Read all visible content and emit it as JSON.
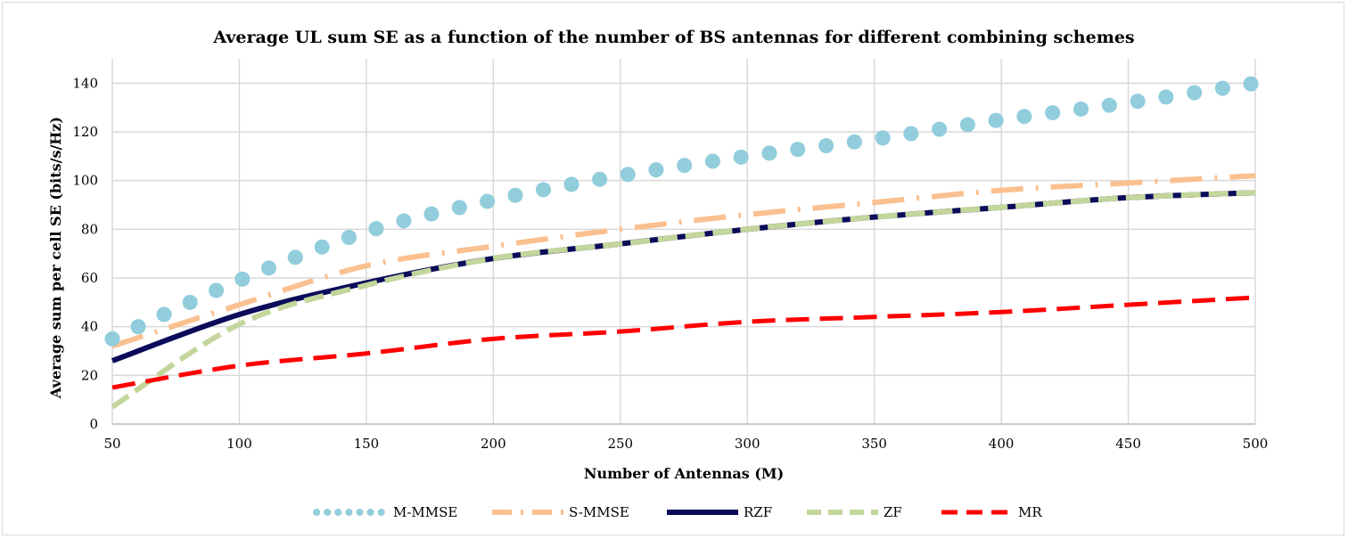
{
  "chart_data": {
    "type": "line",
    "title": "Average UL sum SE as a function of the number of BS antennas for different combining schemes",
    "xlabel": "Number of Antennas (M)",
    "ylabel": "Average sum per cell SE (bits/s/Hz)",
    "xlim": [
      50,
      500
    ],
    "ylim": [
      0,
      150
    ],
    "xticks": [
      50,
      100,
      150,
      200,
      250,
      300,
      350,
      400,
      450,
      500
    ],
    "yticks": [
      0,
      20,
      40,
      60,
      80,
      100,
      120,
      140
    ],
    "grid": true,
    "legend_position": "bottom",
    "series": [
      {
        "name": "M-MMSE",
        "style": "dotted",
        "color": "#92cddc",
        "x": [
          50,
          100,
          150,
          200,
          250,
          300,
          350,
          400,
          450,
          500
        ],
        "y": [
          35,
          59,
          79,
          92,
          102,
          110,
          117,
          125,
          132,
          140
        ]
      },
      {
        "name": "S-MMSE",
        "style": "dash-dot",
        "color": "#fac090",
        "x": [
          50,
          100,
          150,
          200,
          250,
          300,
          350,
          400,
          450,
          500
        ],
        "y": [
          32,
          49,
          65,
          73,
          80,
          86,
          91,
          96,
          99,
          102
        ]
      },
      {
        "name": "RZF",
        "style": "solid",
        "color": "#0b0b5a",
        "x": [
          50,
          100,
          150,
          200,
          250,
          300,
          350,
          400,
          450,
          500
        ],
        "y": [
          26,
          45,
          58,
          68,
          74,
          80,
          85,
          89,
          93,
          95
        ]
      },
      {
        "name": "ZF",
        "style": "dashed",
        "color": "#c3d69b",
        "x": [
          50,
          100,
          150,
          200,
          250,
          300,
          350,
          400,
          450,
          500
        ],
        "y": [
          7,
          41,
          57,
          68,
          74,
          80,
          85,
          89,
          93,
          95
        ]
      },
      {
        "name": "MR",
        "style": "dashed",
        "color": "#ff0000",
        "x": [
          50,
          100,
          150,
          200,
          250,
          300,
          350,
          400,
          450,
          500
        ],
        "y": [
          15,
          24,
          29,
          35,
          38,
          42,
          44,
          46,
          49,
          52
        ]
      }
    ]
  }
}
